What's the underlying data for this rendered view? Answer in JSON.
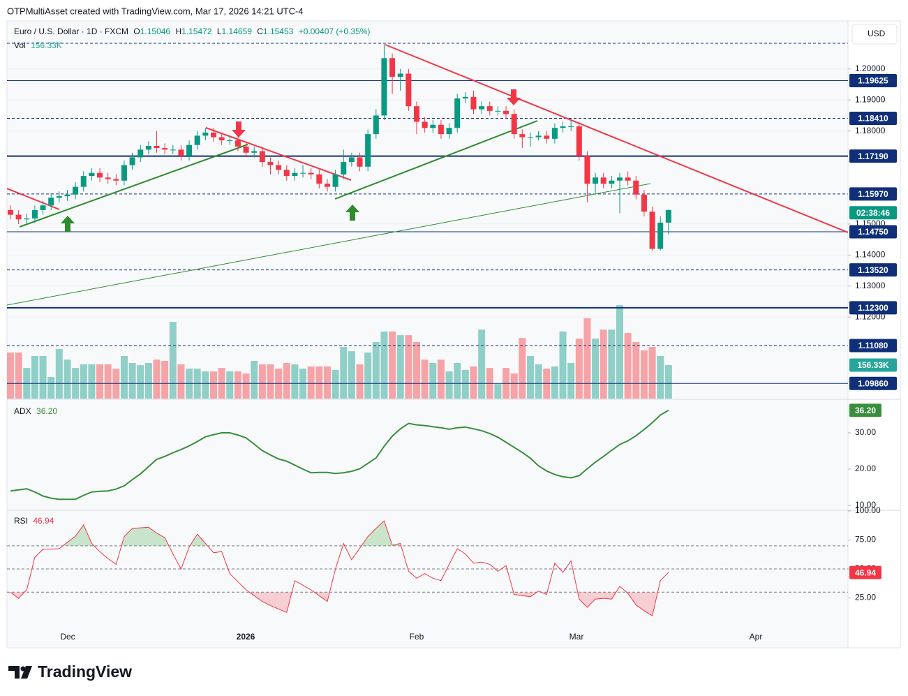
{
  "header": {
    "title": "OTPMultiAsset created with TradingView.com, Mar 17, 2026 14:21 UTC-4"
  },
  "currency": "USD",
  "logo": "TradingView",
  "chart_data": [
    {
      "type": "candlestick",
      "symbol": "Euro / U.S. Dollar · 1D · FXCM",
      "legend_keys": [
        "O",
        "H",
        "L",
        "C"
      ],
      "change": "+0.00407 (+0.35%)",
      "open": [
        1.1545,
        1.153,
        1.1515,
        1.1518,
        1.1545,
        1.156,
        1.1585,
        1.159,
        1.1595,
        1.162,
        1.1655,
        1.1665,
        1.165,
        1.1645,
        1.164,
        1.169,
        1.1715,
        1.174,
        1.1752,
        1.1745,
        1.174,
        1.174,
        1.172,
        1.1755,
        1.1785,
        1.1795,
        1.178,
        1.177,
        1.177,
        1.175,
        1.173,
        1.1735,
        1.17,
        1.169,
        1.1675,
        1.1655,
        1.1665,
        1.1665,
        1.166,
        1.163,
        1.162,
        1.166,
        1.17,
        1.1715,
        1.1685,
        1.179,
        1.185,
        1.2035,
        1.1975,
        1.1985,
        1.188,
        1.183,
        1.181,
        1.182,
        1.179,
        1.181,
        1.1905,
        1.191,
        1.187,
        1.188,
        1.1865,
        1.1865,
        1.1855,
        1.179,
        1.178,
        1.178,
        1.1785,
        1.1775,
        1.181,
        1.1815,
        1.1815,
        1.172,
        1.163,
        1.165,
        1.163,
        1.164,
        1.165,
        1.164,
        1.1595,
        1.154,
        1.142,
        1.15046
      ],
      "high": [
        1.156,
        1.1545,
        1.1533,
        1.156,
        1.1575,
        1.16,
        1.1605,
        1.161,
        1.1635,
        1.167,
        1.168,
        1.168,
        1.1665,
        1.166,
        1.1705,
        1.173,
        1.1755,
        1.1767,
        1.18,
        1.176,
        1.1755,
        1.1755,
        1.177,
        1.18,
        1.181,
        1.181,
        1.1795,
        1.1785,
        1.1785,
        1.1765,
        1.175,
        1.175,
        1.1715,
        1.1705,
        1.169,
        1.168,
        1.169,
        1.168,
        1.1675,
        1.1645,
        1.1675,
        1.174,
        1.173,
        1.173,
        1.1805,
        1.187,
        1.208,
        1.205,
        1.2,
        1.2,
        1.1895,
        1.1845,
        1.1835,
        1.1835,
        1.1825,
        1.192,
        1.1925,
        1.193,
        1.1895,
        1.1895,
        1.188,
        1.188,
        1.187,
        1.1805,
        1.1795,
        1.18,
        1.18,
        1.1825,
        1.183,
        1.1835,
        1.183,
        1.1735,
        1.1665,
        1.1665,
        1.1655,
        1.1665,
        1.167,
        1.1655,
        1.161,
        1.1555,
        1.1525,
        1.15472
      ],
      "low": [
        1.1515,
        1.15,
        1.15,
        1.1503,
        1.153,
        1.1545,
        1.157,
        1.1575,
        1.158,
        1.1605,
        1.164,
        1.1635,
        1.163,
        1.1625,
        1.1625,
        1.1675,
        1.17,
        1.1725,
        1.173,
        1.1725,
        1.1725,
        1.1705,
        1.1705,
        1.174,
        1.177,
        1.1765,
        1.1755,
        1.1755,
        1.1735,
        1.1715,
        1.1715,
        1.1685,
        1.166,
        1.166,
        1.164,
        1.164,
        1.165,
        1.1645,
        1.1615,
        1.1605,
        1.1605,
        1.1645,
        1.1685,
        1.167,
        1.167,
        1.1775,
        1.1835,
        1.192,
        1.193,
        1.1865,
        1.179,
        1.1795,
        1.1795,
        1.1775,
        1.1775,
        1.1795,
        1.189,
        1.1855,
        1.1855,
        1.185,
        1.185,
        1.184,
        1.1775,
        1.1745,
        1.175,
        1.177,
        1.176,
        1.176,
        1.1795,
        1.18,
        1.1705,
        1.157,
        1.16,
        1.1615,
        1.1615,
        1.1535,
        1.1625,
        1.158,
        1.1525,
        1.1415,
        1.1415,
        1.14659
      ],
      "close": [
        1.153,
        1.1515,
        1.1518,
        1.1545,
        1.156,
        1.1585,
        1.159,
        1.1595,
        1.162,
        1.1655,
        1.1665,
        1.165,
        1.1645,
        1.164,
        1.169,
        1.1715,
        1.174,
        1.1752,
        1.1745,
        1.174,
        1.174,
        1.172,
        1.1755,
        1.1785,
        1.1795,
        1.178,
        1.177,
        1.177,
        1.175,
        1.173,
        1.1735,
        1.17,
        1.169,
        1.1675,
        1.1655,
        1.1665,
        1.1665,
        1.166,
        1.163,
        1.162,
        1.166,
        1.17,
        1.1715,
        1.1685,
        1.179,
        1.185,
        1.2035,
        1.1975,
        1.1985,
        1.188,
        1.183,
        1.181,
        1.182,
        1.179,
        1.181,
        1.1905,
        1.191,
        1.187,
        1.188,
        1.1865,
        1.1865,
        1.1855,
        1.179,
        1.178,
        1.178,
        1.1785,
        1.1775,
        1.181,
        1.1815,
        1.1815,
        1.172,
        1.163,
        1.165,
        1.163,
        1.164,
        1.165,
        1.164,
        1.1595,
        1.154,
        1.142,
        1.15046,
        1.15453
      ],
      "up_color": "#089981",
      "down_color": "#f23645",
      "ylim": [
        1.0937,
        1.2155
      ],
      "yticks": [
        {
          "value": 1.2,
          "label": "1.20000"
        },
        {
          "value": 1.19,
          "label": "1.19000"
        },
        {
          "value": 1.18,
          "label": "1.18000"
        },
        {
          "value": 1.15,
          "label": "1.15000"
        },
        {
          "value": 1.14,
          "label": "1.14000"
        },
        {
          "value": 1.13,
          "label": "1.13000"
        },
        {
          "value": 1.12,
          "label": "1.12000"
        }
      ],
      "levels": [
        {
          "value": 1.2083,
          "style": "dashed"
        },
        {
          "value": 1.19625,
          "label": "1.19625",
          "style": "solid"
        },
        {
          "value": 1.1841,
          "label": "1.18410",
          "style": "dashed"
        },
        {
          "value": 1.1719,
          "label": "1.17190",
          "style": "thick"
        },
        {
          "value": 1.1597,
          "label": "1.15970",
          "style": "dashed"
        },
        {
          "value": 1.1475,
          "label": "1.14750",
          "style": "solid"
        },
        {
          "value": 1.1352,
          "label": "1.13520",
          "style": "dashed"
        },
        {
          "value": 1.123,
          "label": "1.12300",
          "style": "thick"
        },
        {
          "value": 1.1108,
          "label": "1.11080",
          "style": "dashed"
        },
        {
          "value": 1.0986,
          "label": "1.09860",
          "style": "solid"
        }
      ],
      "level_color": "#0f2f78",
      "countdown": "02:38:46",
      "xtick_labels": [
        "Dec",
        "2026",
        "Feb",
        "Mar",
        "Apr"
      ]
    },
    {
      "type": "volume",
      "name": "Vol",
      "values": [
        215,
        215,
        143,
        199,
        199,
        101,
        231,
        182,
        143,
        160,
        160,
        160,
        160,
        140,
        199,
        166,
        156,
        166,
        182,
        176,
        358,
        160,
        140,
        140,
        127,
        127,
        143,
        127,
        127,
        117,
        176,
        160,
        160,
        140,
        166,
        160,
        140,
        150,
        150,
        150,
        134,
        241,
        221,
        160,
        215,
        264,
        313,
        313,
        296,
        296,
        264,
        182,
        166,
        182,
        127,
        166,
        134,
        150,
        322,
        143,
        68,
        143,
        117,
        283,
        199,
        160,
        140,
        150,
        313,
        166,
        280,
        375,
        280,
        322,
        322,
        436,
        306,
        264,
        225,
        241,
        199,
        156.33
      ],
      "value_label": "156.33K",
      "up_color": "#8fcfc7",
      "down_color": "#f5a3a6"
    },
    {
      "type": "line",
      "name": "ADX",
      "values": [
        14.0,
        14.3,
        14.6,
        13.7,
        12.6,
        12.0,
        11.7,
        11.7,
        11.7,
        12.8,
        13.7,
        13.9,
        14.0,
        14.5,
        15.4,
        17.1,
        18.7,
        20.7,
        22.7,
        23.5,
        24.5,
        25.4,
        26.4,
        27.6,
        28.9,
        29.5,
        30.0,
        30.0,
        29.4,
        28.6,
        26.9,
        25.1,
        23.9,
        22.8,
        22.2,
        21.1,
        20.0,
        19.0,
        19.1,
        19.1,
        18.8,
        19.0,
        19.4,
        20.1,
        21.6,
        23.1,
        26.3,
        29.1,
        31.1,
        32.6,
        32.2,
        32.0,
        31.7,
        31.4,
        31.0,
        31.4,
        31.6,
        31.1,
        30.6,
        29.8,
        28.8,
        27.4,
        26.0,
        24.6,
        23.0,
        20.9,
        19.5,
        18.5,
        17.9,
        17.6,
        18.2,
        20.1,
        21.9,
        23.5,
        25.2,
        26.8,
        27.8,
        29.2,
        30.9,
        32.8,
        34.9,
        36.2
      ],
      "value_label": "36.20",
      "color": "#388e3c",
      "ylim": [
        8.85,
        39.04
      ],
      "yticks": [
        {
          "value": 30,
          "label": "30.00"
        },
        {
          "value": 20,
          "label": "20.00"
        },
        {
          "value": 10,
          "label": "10.00"
        }
      ]
    },
    {
      "type": "line",
      "name": "RSI",
      "values": [
        30,
        24.7,
        32,
        60,
        67,
        67.2,
        67.5,
        73,
        78.3,
        88,
        72,
        65,
        59,
        54,
        78,
        85,
        85.5,
        86,
        81,
        77,
        63,
        50,
        69,
        80,
        72,
        64,
        65,
        46,
        39,
        32,
        27,
        22,
        18.5,
        15.5,
        12.6,
        40,
        36,
        32,
        27,
        22,
        50,
        72,
        58,
        68,
        78,
        85,
        91.6,
        70.5,
        72,
        48,
        42,
        46,
        42,
        40,
        54,
        67.5,
        63,
        55,
        56,
        54,
        48,
        53,
        28,
        27,
        26,
        31,
        28,
        55,
        47,
        57,
        24,
        17,
        24,
        24.7,
        24,
        35,
        29,
        19,
        14,
        9.6,
        40,
        46.94
      ],
      "color": "#f23645",
      "ylim": [
        -18,
        100
      ],
      "yticks": [
        {
          "value": 100,
          "label": "100.00"
        },
        {
          "value": 75,
          "label": "75.00"
        },
        {
          "value": 50,
          "label": "50.00"
        },
        {
          "value": 25,
          "label": "25.00"
        }
      ],
      "levels": [
        70,
        50,
        30
      ]
    }
  ]
}
